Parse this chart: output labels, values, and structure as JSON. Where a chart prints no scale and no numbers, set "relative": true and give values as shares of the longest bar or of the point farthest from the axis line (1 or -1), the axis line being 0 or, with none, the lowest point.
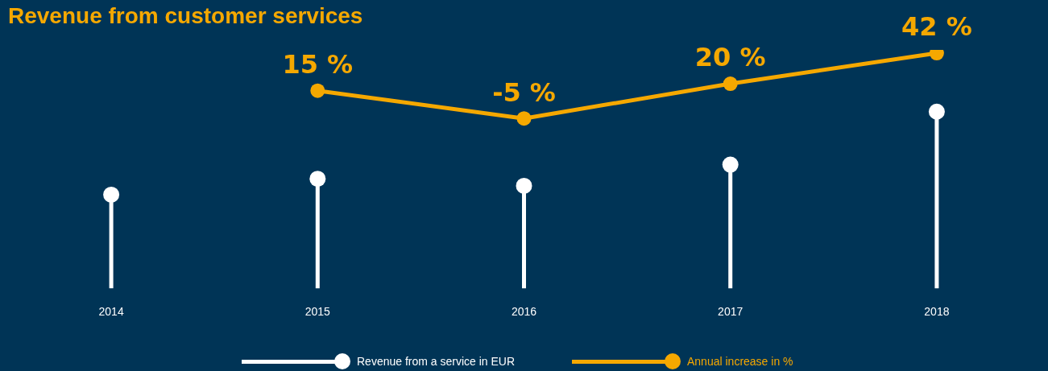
{
  "chart_data": [
    {
      "type": "lollipop",
      "title": "Revenue from customer services",
      "categories": [
        "2014",
        "2015",
        "2016",
        "2017",
        "2018"
      ],
      "relative": true,
      "legend": "bottom",
      "marker": "circle",
      "series": [
        {
          "name": "Revenue from a service in EUR",
          "color": "#ffffff",
          "values": [
            0.53,
            0.62,
            0.58,
            0.7,
            1
          ]
        }
      ]
    },
    {
      "type": "line",
      "categories": [
        "2015",
        "2016",
        "2017",
        "2018"
      ],
      "tick_labels": false,
      "legend": "bottom",
      "marker": "circle",
      "series": [
        {
          "name": "Annual increase in %",
          "color": "#f5a800",
          "values": [
            15,
            -5,
            20,
            42
          ],
          "value_labels": [
            "15 %",
            "-5 %",
            "20 %",
            "42 %"
          ]
        }
      ]
    }
  ]
}
